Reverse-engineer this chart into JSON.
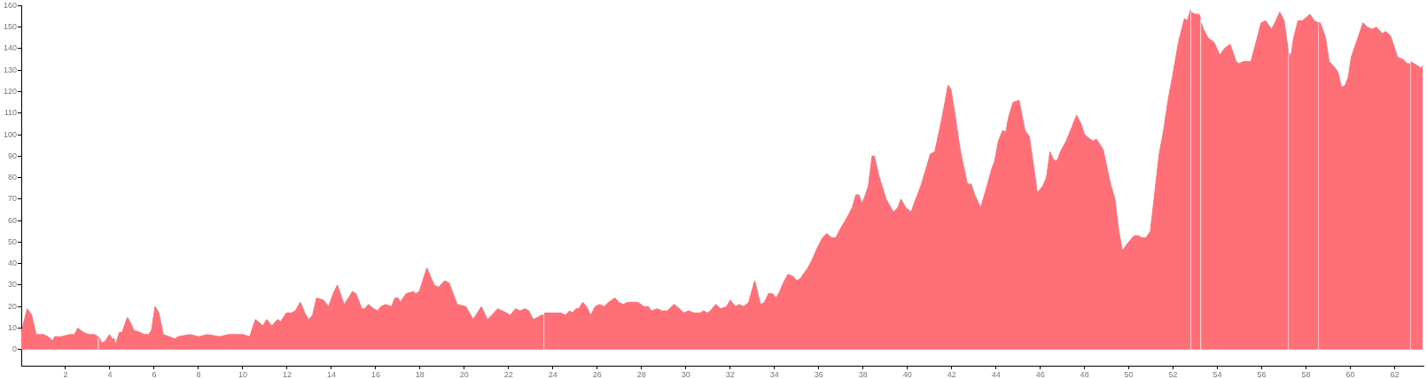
{
  "chart_data": {
    "type": "area",
    "x": [
      0,
      0.27,
      0.47,
      0.67,
      1.0,
      1.2,
      1.43,
      1.5,
      1.8,
      2.2,
      2.4,
      2.55,
      2.8,
      3.05,
      3.3,
      3.47,
      3.48,
      3.49,
      3.64,
      3.8,
      3.98,
      4.1,
      4.2,
      4.24,
      4.43,
      4.55,
      4.79,
      4.95,
      5.08,
      5.35,
      5.55,
      5.75,
      5.88,
      6.04,
      6.21,
      6.41,
      6.68,
      6.92,
      7.08,
      7.61,
      8.01,
      8.41,
      8.95,
      9.35,
      9.75,
      10.0,
      10.31,
      10.57,
      10.91,
      11.08,
      11.31,
      11.57,
      11.71,
      11.97,
      12.17,
      12.37,
      12.6,
      12.8,
      12.97,
      13.15,
      13.33,
      13.64,
      13.88,
      14.08,
      14.27,
      14.57,
      14.77,
      14.95,
      15.11,
      15.37,
      15.51,
      15.67,
      15.91,
      16.08,
      16.24,
      16.44,
      16.71,
      16.87,
      17.0,
      17.11,
      17.37,
      17.71,
      17.8,
      17.97,
      18.31,
      18.64,
      18.84,
      19.11,
      19.31,
      19.68,
      20.07,
      20.4,
      20.77,
      21.04,
      21.24,
      21.51,
      21.71,
      21.91,
      22.08,
      22.31,
      22.51,
      22.75,
      22.91,
      23.11,
      23.31,
      23.47,
      23.59,
      23.6,
      23.61,
      23.77,
      24.11,
      24.37,
      24.57,
      24.75,
      24.88,
      25.04,
      25.17,
      25.35,
      25.51,
      25.71,
      25.91,
      26.11,
      26.31,
      26.51,
      26.8,
      26.97,
      27.17,
      27.37,
      27.64,
      27.84,
      28.11,
      28.31,
      28.44,
      28.71,
      28.91,
      29.17,
      29.47,
      29.71,
      29.91,
      30.11,
      30.37,
      30.64,
      30.8,
      30.97,
      31.11,
      31.35,
      31.57,
      31.84,
      32.01,
      32.24,
      32.41,
      32.61,
      32.84,
      33.11,
      33.37,
      33.55,
      33.73,
      33.91,
      34.08,
      34.24,
      34.4,
      34.61,
      34.84,
      35.01,
      35.17,
      35.37,
      35.51,
      35.71,
      35.97,
      36.17,
      36.37,
      36.57,
      36.77,
      36.97,
      37.31,
      37.51,
      37.68,
      37.81,
      37.95,
      38.11,
      38.24,
      38.41,
      38.51,
      38.71,
      39.04,
      39.37,
      39.57,
      39.71,
      39.93,
      40.17,
      40.31,
      40.64,
      40.84,
      41.04,
      41.24,
      41.53,
      41.68,
      41.84,
      41.97,
      42.17,
      42.37,
      42.44,
      42.71,
      42.88,
      43.04,
      43.31,
      43.57,
      43.81,
      43.95,
      44.11,
      44.31,
      44.44,
      44.57,
      44.77,
      45.04,
      45.31,
      45.51,
      45.87,
      46.11,
      46.28,
      46.44,
      46.61,
      46.77,
      46.91,
      47.17,
      47.41,
      47.64,
      47.84,
      48.0,
      48.24,
      48.4,
      48.53,
      48.84,
      49.17,
      49.37,
      49.55,
      49.71,
      49.91,
      50.24,
      50.44,
      50.57,
      50.77,
      50.97,
      51.17,
      51.37,
      51.57,
      51.77,
      51.97,
      52.24,
      52.51,
      52.64,
      52.79,
      52.8,
      52.81,
      52.97,
      53.17,
      53.24,
      53.25,
      53.26,
      53.37,
      53.57,
      53.84,
      54.11,
      54.31,
      54.57,
      54.84,
      54.97,
      55.17,
      55.51,
      55.77,
      55.97,
      56.17,
      56.44,
      56.64,
      56.81,
      57.01,
      57.17,
      57.2,
      57.21,
      57.22,
      57.31,
      57.44,
      57.64,
      57.84,
      58.17,
      58.37,
      58.54,
      58.55,
      58.56,
      58.64,
      58.88,
      59.04,
      59.31,
      59.44,
      59.6,
      59.77,
      59.91,
      60.04,
      60.31,
      60.57,
      60.77,
      60.97,
      61.17,
      61.44,
      61.6,
      61.81,
      61.97,
      62.13,
      62.37,
      62.57,
      62.7,
      62.71,
      62.72,
      63.04,
      63.17,
      63.27
    ],
    "series": [
      {
        "color": "#ff6f78",
        "values": [
          8,
          19,
          16,
          7,
          7,
          6,
          4,
          6,
          6,
          7,
          7,
          10,
          8,
          7,
          7,
          6,
          null,
          6,
          3,
          4,
          7,
          5,
          5,
          2,
          8,
          8,
          15,
          12,
          9,
          8,
          7,
          7,
          9,
          20,
          17,
          7,
          6,
          5,
          6,
          7,
          6,
          7,
          6,
          7,
          7,
          7,
          6,
          14,
          11,
          14,
          11,
          14,
          13,
          17,
          17,
          18,
          22,
          17,
          14,
          16,
          24,
          23,
          20,
          26,
          30,
          21,
          24,
          27,
          26,
          19,
          19,
          21,
          19,
          18,
          20,
          21,
          20,
          24,
          24,
          22,
          26,
          27,
          26,
          27,
          38,
          30,
          29,
          32,
          31,
          21,
          20,
          14,
          20,
          14,
          16,
          19,
          18,
          17,
          16,
          19,
          18,
          19,
          18,
          14,
          15,
          16,
          16,
          null,
          17,
          17,
          17,
          17,
          16,
          18,
          17,
          19,
          19,
          22,
          20,
          16,
          20,
          21,
          20,
          22,
          24,
          22,
          21,
          22,
          22,
          22,
          20,
          20,
          18,
          19,
          18,
          18,
          21,
          19,
          17,
          18,
          17,
          17,
          18,
          17,
          18,
          21,
          19,
          20,
          23,
          20,
          21,
          20,
          22,
          32,
          21,
          22,
          26,
          26,
          24,
          27,
          31,
          35,
          34,
          32,
          33,
          36,
          38,
          42,
          48,
          52,
          54,
          52,
          52,
          56,
          62,
          66,
          72,
          72,
          68,
          72,
          76,
          90,
          90,
          81,
          70,
          64,
          66,
          70,
          66,
          64,
          68,
          77,
          84,
          91,
          92,
          106,
          114,
          123,
          121,
          108,
          94,
          90,
          77,
          77,
          72,
          66,
          75,
          84,
          88,
          97,
          102,
          101,
          108,
          115,
          116,
          102,
          99,
          73,
          76,
          80,
          92,
          88,
          88,
          92,
          97,
          103,
          109,
          105,
          100,
          98,
          97,
          98,
          93,
          77,
          70,
          55,
          46,
          49,
          53,
          53,
          52,
          52,
          55,
          73,
          91,
          102,
          116,
          127,
          143,
          154,
          153,
          158,
          null,
          157,
          156,
          156,
          154,
          null,
          152,
          149,
          145,
          143,
          137,
          140,
          142,
          134,
          133,
          134,
          134,
          144,
          152,
          153,
          149,
          153,
          157,
          153,
          141,
          139,
          null,
          138,
          136,
          145,
          153,
          153,
          156,
          153,
          152,
          null,
          152,
          152,
          145,
          134,
          131,
          129,
          122,
          123,
          127,
          136,
          144,
          152,
          150,
          149,
          150,
          147,
          148,
          146,
          141,
          136,
          135,
          133,
          133,
          null,
          134,
          132,
          131,
          132
        ]
      }
    ],
    "xlim": [
      0,
      63.3
    ],
    "xticks": [
      2,
      4,
      6,
      8,
      10,
      12,
      14,
      16,
      18,
      20,
      22,
      24,
      26,
      28,
      30,
      32,
      34,
      36,
      38,
      40,
      42,
      44,
      46,
      48,
      50,
      52,
      54,
      56,
      58,
      60,
      62
    ],
    "ylim": [
      -7.5,
      160
    ],
    "yticks": [
      0,
      10,
      20,
      30,
      40,
      50,
      60,
      70,
      80,
      90,
      100,
      110,
      120,
      130,
      140,
      150,
      160
    ]
  }
}
